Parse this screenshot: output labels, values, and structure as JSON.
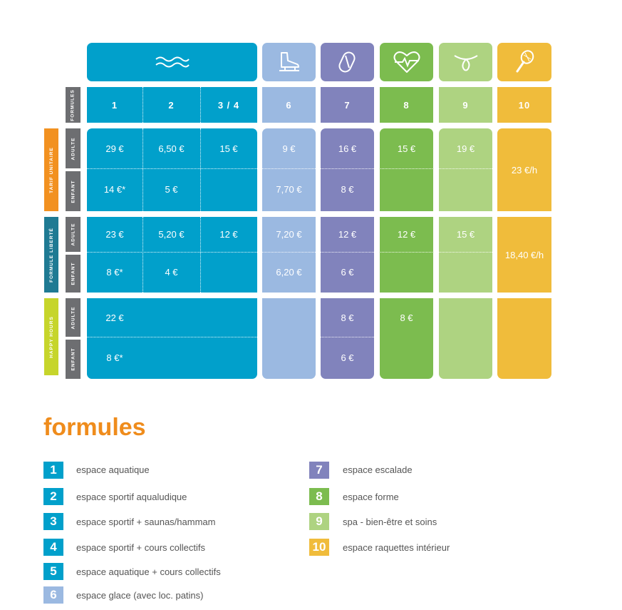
{
  "colors": {
    "aqua": "#01a0cb",
    "ice": "#9bb9e1",
    "escalade": "#8183bc",
    "forme": "#7cbc4f",
    "spa": "#aed381",
    "raquettes": "#f0bc3b",
    "label_gray": "#6d6e71",
    "tarif_unitaire": "#f29120",
    "formule_liberte": "#1f7a93",
    "happy_hours": "#c6d52b"
  },
  "icons": {
    "aqua": "waves-icon",
    "ice": "ice-skate-icon",
    "escalade": "carabiner-icon",
    "forme": "heart-pulse-icon",
    "spa": "spa-knot-icon",
    "raquettes": "racket-icon"
  },
  "row_labels": {
    "formules": "FORMULES",
    "adulte": "ADULTE",
    "enfant": "ENFANT"
  },
  "groups": {
    "tarif_unitaire": "TARIF UNITAIRE",
    "formule_liberte": "FORMULE LIBERTÉ",
    "happy_hours": "HAPPY HOURS"
  },
  "formula_numbers": {
    "c1": "1",
    "c2": "2",
    "c34": "3 / 4",
    "c6": "6",
    "c7": "7",
    "c8": "8",
    "c9": "9",
    "c10": "10"
  },
  "prices": {
    "tu_adulte": {
      "c1": "29 €",
      "c2": "6,50 €",
      "c34": "15 €",
      "c6": "9 €",
      "c7": "16 €",
      "c8": "15 €",
      "c9": "19 €"
    },
    "tu_enfant": {
      "c1": "14 €*",
      "c2": "5 €",
      "c6": "7,70 €",
      "c7": "8 €"
    },
    "tu_c10": "23 €/h",
    "fl_adulte": {
      "c1": "23 €",
      "c2": "5,20 €",
      "c34": "12 €",
      "c6": "7,20 €",
      "c7": "12 €",
      "c8": "12 €",
      "c9": "15 €"
    },
    "fl_enfant": {
      "c1": "8 €*",
      "c2": "4 €",
      "c6": "6,20 €",
      "c7": "6 €"
    },
    "fl_c10": "18,40 €/h",
    "hh_adulte": {
      "c1": "22 €",
      "c7": "8 €",
      "c8": "8 €"
    },
    "hh_enfant": {
      "c1": "8 €*",
      "c7": "6 €"
    }
  },
  "legend": {
    "title": "formules",
    "items": [
      {
        "num": "1",
        "text": "espace aquatique"
      },
      {
        "num": "2",
        "text": "espace sportif aqualudique"
      },
      {
        "num": "3",
        "text": "espace sportif + saunas/hammam"
      },
      {
        "num": "4",
        "text": "espace sportif + cours collectifs"
      },
      {
        "num": "5",
        "text": "espace aquatique + cours collectifs"
      },
      {
        "num": "6",
        "text": "espace glace (avec loc. patins)"
      },
      {
        "num": "7",
        "text": "espace escalade"
      },
      {
        "num": "8",
        "text": "espace forme"
      },
      {
        "num": "9",
        "text": "spa - bien-être et soins"
      },
      {
        "num": "10",
        "text": "espace raquettes intérieur"
      }
    ]
  }
}
